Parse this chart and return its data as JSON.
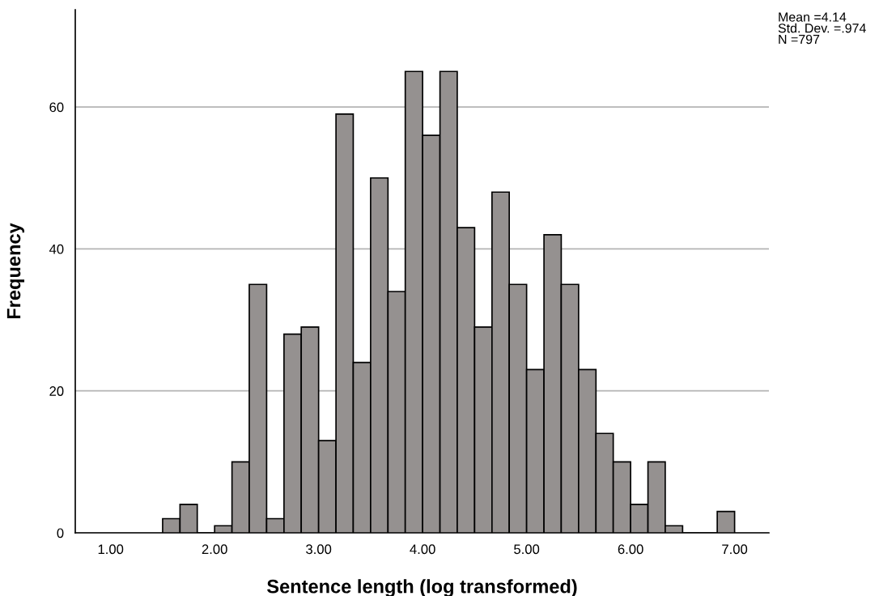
{
  "chart_data": {
    "type": "histogram",
    "xlabel": "Sentence length (log transformed)",
    "ylabel": "Frequency",
    "annotations": [
      "Mean =4.14\nStd. Dev. =.974\nN =797"
    ],
    "bins": [
      1.5,
      1.667,
      1.833,
      2.0,
      2.167,
      2.333,
      2.5,
      2.667,
      2.833,
      3.0,
      3.167,
      3.333,
      3.5,
      3.667,
      3.833,
      4.0,
      4.167,
      4.333,
      4.5,
      4.667,
      4.833,
      5.0,
      5.167,
      5.333,
      5.5,
      5.667,
      5.833,
      6.0,
      6.167,
      6.333,
      6.5,
      6.667,
      6.833,
      7.0
    ],
    "values": [
      2,
      4,
      0,
      1,
      10,
      35,
      2,
      28,
      29,
      13,
      59,
      24,
      50,
      34,
      65,
      56,
      65,
      43,
      29,
      48,
      35,
      23,
      42,
      35,
      23,
      14,
      10,
      4,
      10,
      1,
      0,
      0,
      3
    ],
    "color": "#959190",
    "xlim": [
      0.66,
      7.33
    ],
    "xticks": [
      {
        "value": 1,
        "label": "1.00"
      },
      {
        "value": 2,
        "label": "2.00"
      },
      {
        "value": 3,
        "label": "3.00"
      },
      {
        "value": 4,
        "label": "4.00"
      },
      {
        "value": 5,
        "label": "5.00"
      },
      {
        "value": 6,
        "label": "6.00"
      },
      {
        "value": 7,
        "label": "7.00"
      }
    ],
    "ylim": [
      0,
      73.7
    ],
    "yticks": [
      0,
      20,
      40,
      60
    ],
    "grid": "y"
  }
}
